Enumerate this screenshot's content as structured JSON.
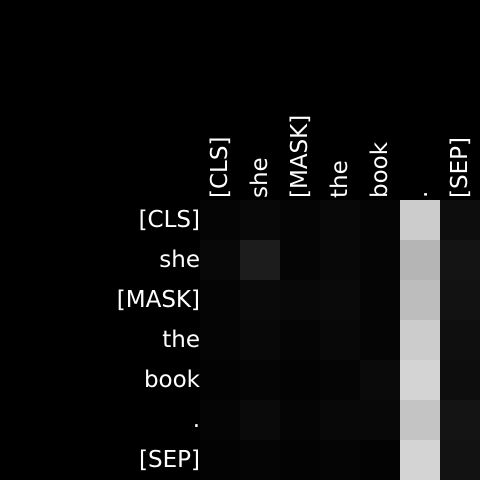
{
  "chart_data": {
    "type": "heatmap",
    "x_labels": [
      "[CLS]",
      "she",
      "[MASK]",
      "the",
      "book",
      ".",
      "[SEP]"
    ],
    "y_labels": [
      "[CLS]",
      "she",
      "[MASK]",
      "the",
      "book",
      ".",
      "[SEP]"
    ],
    "value_range": [
      0,
      1
    ],
    "colormap": "gray",
    "values": [
      [
        0.02,
        0.03,
        0.02,
        0.03,
        0.02,
        0.8,
        0.05
      ],
      [
        0.03,
        0.11,
        0.02,
        0.03,
        0.02,
        0.71,
        0.08
      ],
      [
        0.02,
        0.04,
        0.03,
        0.04,
        0.02,
        0.74,
        0.07
      ],
      [
        0.02,
        0.03,
        0.02,
        0.03,
        0.02,
        0.8,
        0.06
      ],
      [
        0.01,
        0.02,
        0.01,
        0.02,
        0.04,
        0.83,
        0.05
      ],
      [
        0.02,
        0.04,
        0.02,
        0.03,
        0.03,
        0.77,
        0.08
      ],
      [
        0.01,
        0.02,
        0.01,
        0.02,
        0.01,
        0.83,
        0.07
      ]
    ]
  }
}
